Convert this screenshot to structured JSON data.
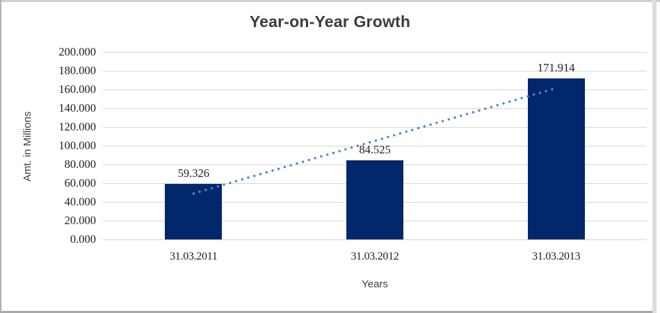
{
  "chart_data": {
    "type": "bar",
    "title": "Year-on-Year Growth",
    "xlabel": "Years",
    "ylabel": "Amt. in Millions",
    "categories": [
      "31.03.2011",
      "31.03.2012",
      "31.03.2013"
    ],
    "values": [
      59.326,
      84.525,
      171.914
    ],
    "data_labels": [
      "59.326",
      "84.525",
      "171.914"
    ],
    "ylim": [
      0,
      200
    ],
    "ytick_step": 20,
    "ytick_labels": [
      "0.000",
      "20.000",
      "40.000",
      "60.000",
      "80.000",
      "100.000",
      "120.000",
      "140.000",
      "160.000",
      "180.000",
      "200.000"
    ],
    "grid": true,
    "legend": "none",
    "bar_color": "#03276B",
    "gridline_color": "#D6D6D6",
    "trendline": {
      "type": "linear",
      "style": "dotted",
      "color": "#4E87C9",
      "start_value": 49.0,
      "end_value": 161.5
    }
  }
}
